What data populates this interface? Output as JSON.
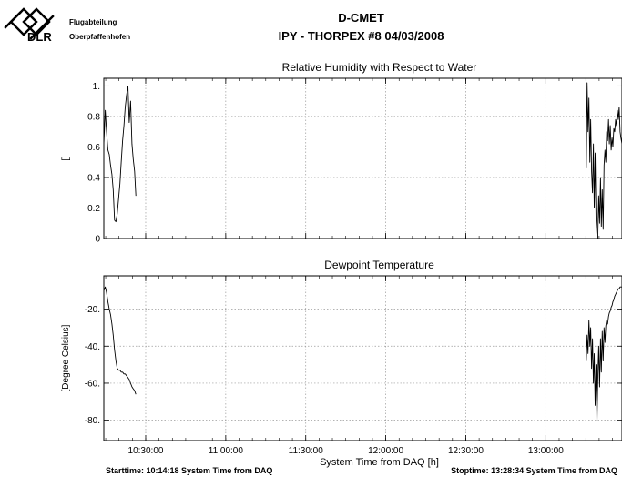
{
  "header": {
    "org_line1": "Flugabteilung",
    "org_line2": "Oberpfaffenhofen",
    "logo_text": "DLR",
    "title": "D-CMET",
    "subtitle": "IPY - THORPEX #8   04/03/2008"
  },
  "footer": {
    "start": "Starttime: 10:14:18 System Time from DAQ",
    "stop": "Stoptime: 13:28:34 System Time from DAQ"
  },
  "colors": {
    "line": "#000000",
    "grid": "#9a9a9a",
    "background": "#ffffff"
  },
  "chart_data": [
    {
      "type": "line",
      "title": "Relative Humidity with Respect to Water",
      "xlabel": "",
      "ylabel": "[]",
      "xlim": [
        "10:14:18",
        "13:28:34"
      ],
      "ylim": [
        0,
        1.05
      ],
      "yticks": [
        0,
        0.2,
        0.4,
        0.6,
        0.8,
        1
      ],
      "ytick_labels": [
        "0",
        "0.2",
        "0.4",
        "0.6",
        "0.8",
        "1."
      ],
      "grid": true,
      "segments": [
        {
          "x": [
            "10:14:18",
            "10:14:50",
            "10:15:20",
            "10:15:50",
            "10:16:20",
            "10:16:50",
            "10:17:20",
            "10:17:50",
            "10:18:20",
            "10:18:50",
            "10:19:20",
            "10:19:50",
            "10:20:20",
            "10:20:50",
            "10:21:20",
            "10:21:50",
            "10:22:20",
            "10:22:50",
            "10:23:20",
            "10:23:50",
            "10:24:20",
            "10:24:50",
            "10:25:20",
            "10:25:50",
            "10:26:20"
          ],
          "values": [
            0.62,
            0.84,
            0.7,
            0.58,
            0.55,
            0.48,
            0.42,
            0.32,
            0.12,
            0.11,
            0.16,
            0.26,
            0.36,
            0.5,
            0.64,
            0.74,
            0.86,
            0.94,
            1.0,
            0.76,
            0.9,
            0.62,
            0.52,
            0.44,
            0.28
          ]
        },
        {
          "x": [
            "13:15:10",
            "13:15:30",
            "13:15:50",
            "13:16:10",
            "13:16:30",
            "13:16:50",
            "13:17:10",
            "13:17:30",
            "13:17:50",
            "13:18:10",
            "13:18:30",
            "13:18:50",
            "13:19:10",
            "13:19:30",
            "13:19:50",
            "13:20:10",
            "13:20:30",
            "13:20:50",
            "13:21:10",
            "13:21:30",
            "13:21:50",
            "13:22:10",
            "13:22:30",
            "13:22:50",
            "13:23:10",
            "13:23:30",
            "13:23:50",
            "13:24:10",
            "13:24:30",
            "13:24:50",
            "13:25:10",
            "13:25:30",
            "13:25:50",
            "13:26:10",
            "13:26:30",
            "13:26:50",
            "13:27:10",
            "13:27:30",
            "13:27:50",
            "13:28:10",
            "13:28:34"
          ],
          "values": [
            0.46,
            1.02,
            0.7,
            0.92,
            0.5,
            0.78,
            0.44,
            0.3,
            0.62,
            0.2,
            0.56,
            0.12,
            0.02,
            0.0,
            0.28,
            0.1,
            0.4,
            0.08,
            0.32,
            0.06,
            0.48,
            0.58,
            0.5,
            0.7,
            0.64,
            0.78,
            0.62,
            0.74,
            0.58,
            0.66,
            0.6,
            0.72,
            0.7,
            0.78,
            0.74,
            0.84,
            0.78,
            0.86,
            0.7,
            0.66,
            0.62
          ]
        }
      ]
    },
    {
      "type": "line",
      "title": "Dewpoint Temperature",
      "xlabel": "System Time from DAQ [h]",
      "ylabel": "[Degree Celsius]",
      "xlim": [
        "10:14:18",
        "13:28:34"
      ],
      "ylim": [
        -91,
        -2
      ],
      "yticks": [
        -80,
        -60,
        -40,
        -20
      ],
      "ytick_labels": [
        "-80.",
        "-60.",
        "-40.",
        "-20."
      ],
      "xticks": [
        "10:30:00",
        "11:00:00",
        "11:30:00",
        "12:00:00",
        "12:30:00",
        "13:00:00"
      ],
      "grid": true,
      "segments": [
        {
          "x": [
            "10:14:18",
            "10:14:50",
            "10:15:20",
            "10:15:50",
            "10:16:20",
            "10:16:50",
            "10:17:20",
            "10:17:50",
            "10:18:20",
            "10:18:50",
            "10:19:20",
            "10:19:50",
            "10:20:20",
            "10:20:50",
            "10:21:20",
            "10:21:50",
            "10:22:20",
            "10:22:50",
            "10:23:20",
            "10:23:50",
            "10:24:20",
            "10:24:50",
            "10:25:20",
            "10:25:50",
            "10:26:20"
          ],
          "values": [
            -10,
            -8,
            -11,
            -16,
            -20,
            -23,
            -28,
            -34,
            -42,
            -48,
            -52,
            -53,
            -53,
            -54,
            -54,
            -55,
            -55,
            -56,
            -57,
            -58,
            -60,
            -62,
            -63,
            -64,
            -66
          ]
        },
        {
          "x": [
            "13:15:10",
            "13:15:30",
            "13:15:50",
            "13:16:10",
            "13:16:30",
            "13:16:50",
            "13:17:10",
            "13:17:30",
            "13:17:50",
            "13:18:10",
            "13:18:30",
            "13:18:50",
            "13:19:10",
            "13:19:30",
            "13:19:50",
            "13:20:10",
            "13:20:30",
            "13:20:50",
            "13:21:10",
            "13:21:30",
            "13:21:50",
            "13:22:10",
            "13:22:30",
            "13:22:50",
            "13:23:10",
            "13:23:30",
            "13:23:50",
            "13:24:10",
            "13:24:30",
            "13:24:50",
            "13:25:10",
            "13:25:30",
            "13:25:50",
            "13:26:10",
            "13:26:30",
            "13:26:50",
            "13:27:10",
            "13:27:30",
            "13:27:50",
            "13:28:10",
            "13:28:34"
          ],
          "values": [
            -48,
            -34,
            -44,
            -26,
            -40,
            -30,
            -52,
            -36,
            -60,
            -44,
            -72,
            -50,
            -82,
            -58,
            -40,
            -62,
            -36,
            -54,
            -32,
            -48,
            -30,
            -38,
            -29,
            -26,
            -28,
            -24,
            -22,
            -21,
            -19,
            -18,
            -16,
            -15,
            -13,
            -12,
            -11,
            -10,
            -9,
            -9,
            -8,
            -8,
            -8
          ]
        }
      ]
    }
  ]
}
